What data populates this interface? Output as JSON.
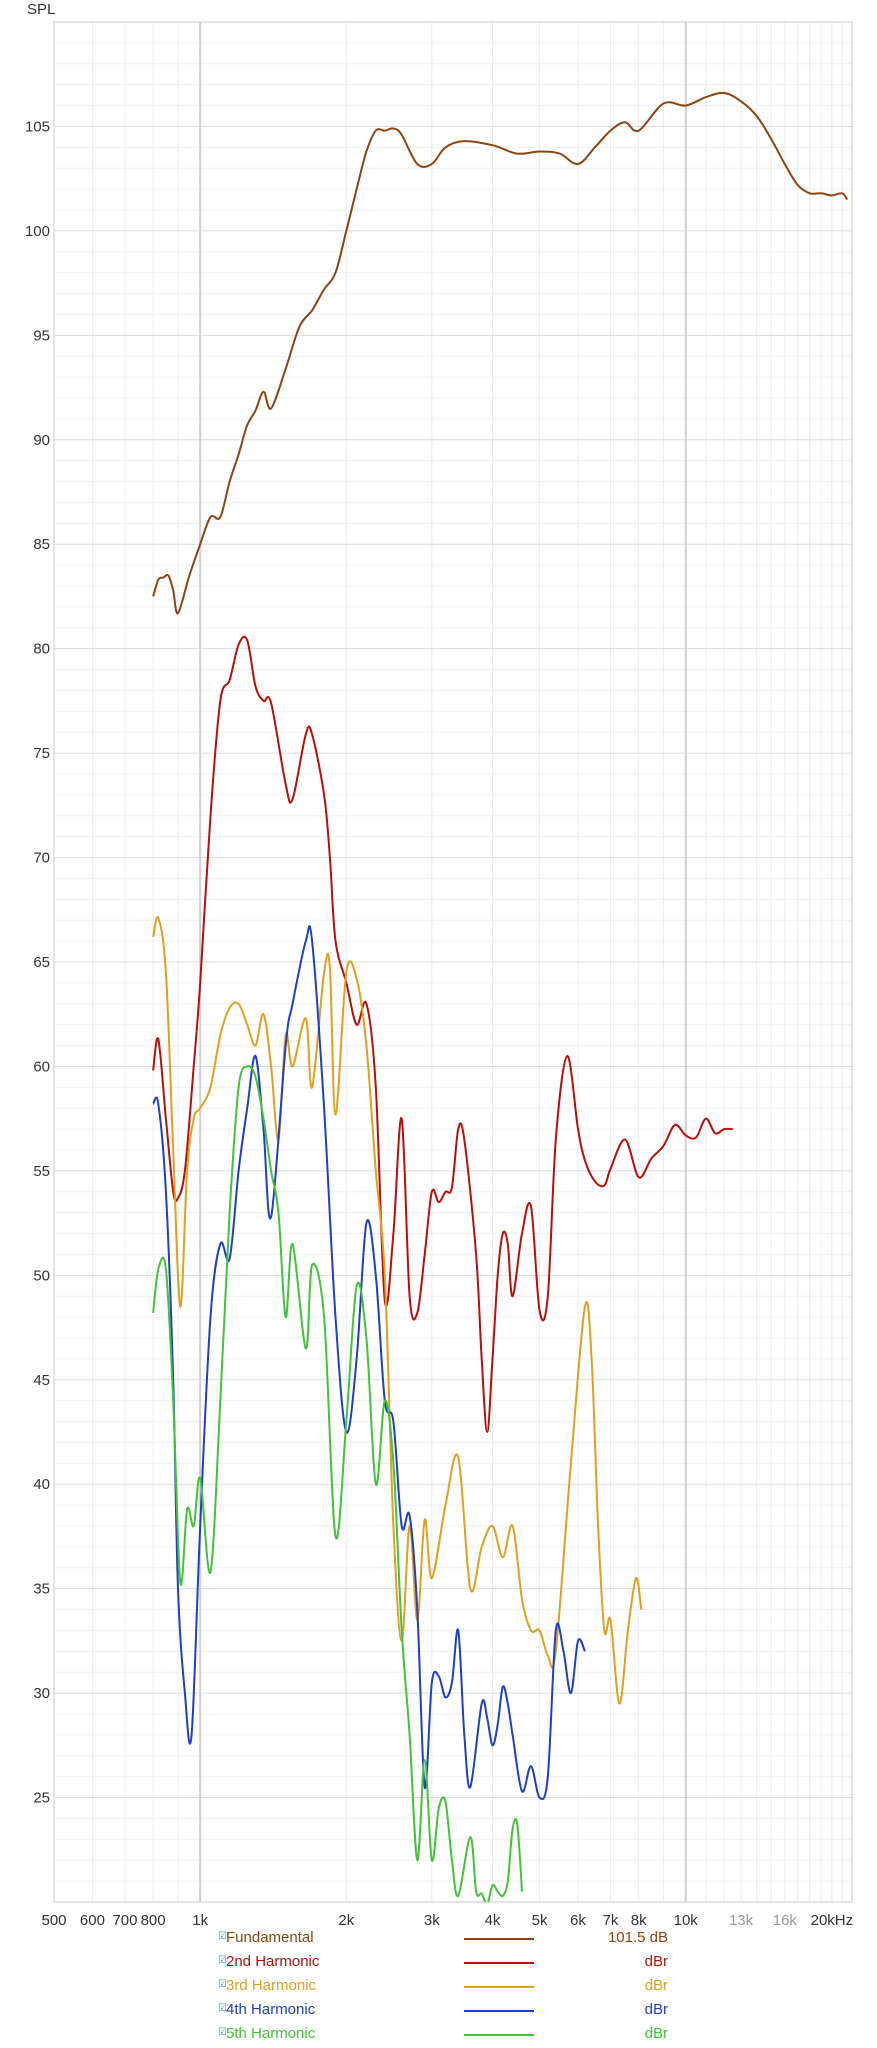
{
  "chart_data": {
    "type": "line",
    "title": "",
    "ylabel": "SPL",
    "xlabel": "",
    "x_scale": "log",
    "xlim": [
      500,
      22000
    ],
    "ylim": [
      20,
      110
    ],
    "grid": true,
    "legend_position": "bottom",
    "y_ticks": [
      25,
      30,
      35,
      40,
      45,
      50,
      55,
      60,
      65,
      70,
      75,
      80,
      85,
      90,
      95,
      100,
      105
    ],
    "x_ticks": [
      {
        "label": "500",
        "value": 500,
        "faded": false
      },
      {
        "label": "600",
        "value": 600,
        "faded": false
      },
      {
        "label": "700",
        "value": 700,
        "faded": false
      },
      {
        "label": "800",
        "value": 800,
        "faded": false
      },
      {
        "label": "1k",
        "value": 1000,
        "faded": false
      },
      {
        "label": "2k",
        "value": 2000,
        "faded": false
      },
      {
        "label": "3k",
        "value": 3000,
        "faded": false
      },
      {
        "label": "4k",
        "value": 4000,
        "faded": false
      },
      {
        "label": "5k",
        "value": 5000,
        "faded": false
      },
      {
        "label": "6k",
        "value": 6000,
        "faded": false
      },
      {
        "label": "7k",
        "value": 7000,
        "faded": false
      },
      {
        "label": "8k",
        "value": 8000,
        "faded": false
      },
      {
        "label": "10k",
        "value": 10000,
        "faded": false
      },
      {
        "label": "13k",
        "value": 13000,
        "faded": true
      },
      {
        "label": "16k",
        "value": 16000,
        "faded": true
      },
      {
        "label": "20kHz",
        "value": 20000,
        "faded": false
      }
    ],
    "series": [
      {
        "name": "Fundamental",
        "color": "#8b4513",
        "legend_value": "101.5 dB",
        "x": [
          800,
          820,
          840,
          860,
          880,
          900,
          950,
          1000,
          1050,
          1100,
          1150,
          1200,
          1250,
          1300,
          1350,
          1400,
          1500,
          1600,
          1700,
          1800,
          1900,
          2000,
          2100,
          2200,
          2300,
          2400,
          2500,
          2600,
          2800,
          3000,
          3200,
          3500,
          4000,
          4500,
          5000,
          5500,
          6000,
          6500,
          7000,
          7500,
          8000,
          9000,
          10000,
          11000,
          12000,
          13000,
          14000,
          15000,
          16000,
          17000,
          18000,
          19000,
          20000,
          21000,
          21500
        ],
        "y": [
          82.5,
          83.3,
          83.4,
          83.5,
          82.8,
          81.7,
          83.5,
          85,
          86.3,
          86.3,
          88,
          89.3,
          90.7,
          91.4,
          92.3,
          91.5,
          93.4,
          95.4,
          96.2,
          97.2,
          98,
          100,
          102,
          103.8,
          104.8,
          104.8,
          104.9,
          104.6,
          103.2,
          103.2,
          104,
          104.3,
          104.1,
          103.7,
          103.8,
          103.7,
          103.2,
          104,
          104.8,
          105.2,
          104.8,
          106.1,
          106,
          106.4,
          106.6,
          106.2,
          105.5,
          104.4,
          103.2,
          102.2,
          101.8,
          101.8,
          101.7,
          101.8,
          101.5
        ]
      },
      {
        "name": "2nd Harmonic",
        "color": "#b80f0a",
        "legend_value": "dBr",
        "x": [
          800,
          820,
          850,
          880,
          900,
          930,
          970,
          1000,
          1050,
          1100,
          1150,
          1200,
          1250,
          1300,
          1350,
          1400,
          1500,
          1550,
          1650,
          1700,
          1800,
          1850,
          1900,
          2000,
          2100,
          2200,
          2300,
          2400,
          2500,
          2600,
          2700,
          2800,
          2900,
          3000,
          3100,
          3200,
          3300,
          3400,
          3500,
          3700,
          3800,
          3900,
          4000,
          4100,
          4200,
          4300,
          4400,
          4600,
          4800,
          5000,
          5200,
          5400,
          5700,
          6000,
          6200,
          6500,
          6800,
          7000,
          7500,
          8000,
          8500,
          9000,
          9500,
          10000,
          10500,
          11000,
          11500,
          12000,
          12500
        ],
        "y": [
          59.8,
          61.3,
          57.5,
          54,
          53.7,
          55,
          60,
          64,
          72,
          77.5,
          78.5,
          80.2,
          80.4,
          78.2,
          77.5,
          77.4,
          73.5,
          72.8,
          75.9,
          75.9,
          73,
          70,
          66,
          64,
          62,
          63,
          59,
          48.8,
          52,
          57.5,
          49,
          48.2,
          51,
          54,
          53.5,
          54,
          54.2,
          57,
          56.5,
          51,
          46,
          42.5,
          46,
          50,
          52,
          51.5,
          49,
          52,
          53.3,
          48.3,
          49,
          56.5,
          60.5,
          57,
          55.5,
          54.5,
          54.3,
          55.1,
          56.5,
          54.7,
          55.6,
          56.2,
          57.2,
          56.7,
          56.6,
          57.5,
          56.8,
          57,
          57
        ]
      },
      {
        "name": "3rd Harmonic",
        "color": "#e0a020",
        "legend_value": "dBr",
        "x": [
          800,
          820,
          850,
          880,
          910,
          940,
          970,
          1000,
          1050,
          1100,
          1150,
          1200,
          1250,
          1300,
          1350,
          1400,
          1450,
          1500,
          1550,
          1650,
          1700,
          1800,
          1850,
          1900,
          2000,
          2100,
          2200,
          2300,
          2400,
          2500,
          2600,
          2700,
          2800,
          2900,
          3000,
          3200,
          3400,
          3600,
          3800,
          4000,
          4200,
          4400,
          4600,
          4800,
          5000,
          5200,
          5400,
          5800,
          6200,
          6400,
          6600,
          6800,
          7000,
          7300,
          7600,
          7900,
          8100
        ],
        "y": [
          66.2,
          67.1,
          64.5,
          56,
          48.5,
          55,
          57.5,
          58,
          59,
          61.5,
          62.8,
          63,
          62,
          61,
          62.5,
          60,
          56.5,
          61.5,
          60,
          62.3,
          59,
          64.5,
          64.7,
          57.7,
          64.5,
          64.2,
          61,
          55,
          50,
          38,
          32.5,
          38,
          33.5,
          38.3,
          35.5,
          39,
          41.3,
          35,
          37,
          38,
          36.5,
          38,
          34.5,
          33,
          33,
          31.8,
          32,
          41,
          48.5,
          46,
          38,
          33,
          33.5,
          29.5,
          33,
          35.5,
          34
        ]
      },
      {
        "name": "4th Harmonic",
        "color": "#1f3fc4",
        "legend_value": "dBr",
        "x": [
          800,
          820,
          850,
          880,
          900,
          930,
          960,
          1000,
          1050,
          1100,
          1150,
          1200,
          1250,
          1300,
          1350,
          1400,
          1500,
          1550,
          1650,
          1700,
          1800,
          1900,
          2000,
          2100,
          2200,
          2300,
          2400,
          2500,
          2600,
          2700,
          2800,
          2900,
          3000,
          3100,
          3200,
          3300,
          3400,
          3500,
          3600,
          3800,
          3900,
          4000,
          4100,
          4200,
          4300,
          4400,
          4600,
          4800,
          5000,
          5200,
          5400,
          5600,
          5800,
          6000,
          6200
        ],
        "y": [
          58.2,
          58.2,
          54,
          45,
          35,
          30,
          28,
          38,
          48,
          51.5,
          50.8,
          55,
          58,
          60.5,
          57,
          52.8,
          61,
          63,
          66,
          66,
          58,
          48,
          42.5,
          46,
          52.5,
          50,
          44,
          43,
          38,
          38.5,
          34,
          25.5,
          30.5,
          30.8,
          29.8,
          30.5,
          33,
          28,
          25.5,
          29.5,
          28.8,
          27.5,
          28.5,
          30.3,
          29.5,
          28,
          25.3,
          26.5,
          25,
          26,
          33,
          32,
          30,
          32.5,
          32
        ]
      },
      {
        "name": "5th Harmonic",
        "color": "#44c23a",
        "legend_value": "dBr",
        "x": [
          800,
          820,
          850,
          880,
          910,
          940,
          970,
          1000,
          1050,
          1100,
          1150,
          1200,
          1250,
          1300,
          1350,
          1400,
          1450,
          1500,
          1550,
          1650,
          1700,
          1800,
          1900,
          2000,
          2100,
          2200,
          2300,
          2400,
          2500,
          2600,
          2700,
          2800,
          2900,
          3000,
          3100,
          3200,
          3300,
          3400,
          3600,
          3700,
          3800,
          3900,
          4000,
          4100,
          4200,
          4300,
          4400,
          4500,
          4600
        ],
        "y": [
          48.2,
          50.3,
          50.3,
          44,
          35.3,
          38.8,
          38,
          40.3,
          35.8,
          44,
          53,
          59,
          60,
          59.5,
          57.5,
          55,
          53,
          48,
          51.5,
          46.5,
          50.5,
          48,
          37.5,
          43,
          49.5,
          47,
          40,
          44,
          41,
          33,
          28,
          22,
          26.8,
          22,
          24.5,
          24.8,
          22,
          20.3,
          23.1,
          20.5,
          20.4,
          19.9,
          20.8,
          20.5,
          20.3,
          21,
          23.5,
          23.7,
          20.5
        ]
      }
    ]
  }
}
